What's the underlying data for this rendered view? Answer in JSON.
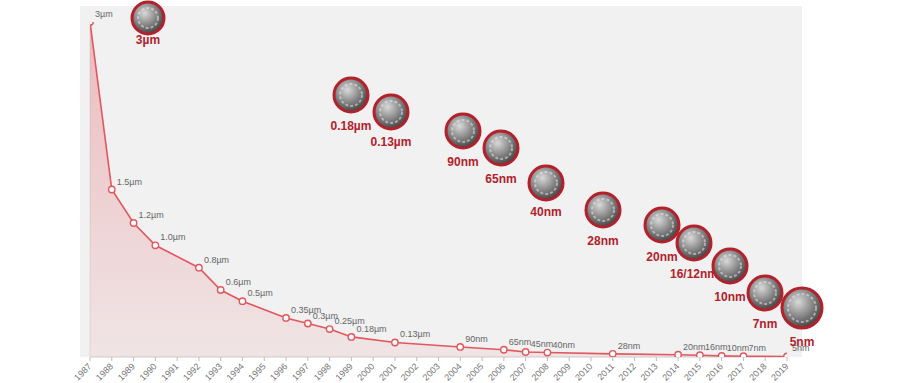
{
  "chart_data": {
    "type": "area",
    "x": [
      1987,
      1988,
      1989,
      1990,
      1992,
      1993,
      1994,
      1996,
      1997,
      1998,
      1999,
      2001,
      2004,
      2006,
      2007,
      2008,
      2011,
      2014,
      2015,
      2016,
      2017,
      2019
    ],
    "values": [
      3000,
      1500,
      1200,
      1000,
      800,
      600,
      500,
      350,
      300,
      250,
      180,
      130,
      90,
      65,
      45,
      40,
      28,
      20,
      16,
      10,
      7,
      5
    ],
    "value_labels": [
      "3µm",
      "1.5µm",
      "1.2µm",
      "1.0µm",
      "0.8µm",
      "0.6µm",
      "0.5µm",
      "0.35µm",
      "0.3µm",
      "0.25µm",
      "0.18µm",
      "0.13µm",
      "90nm",
      "65nm",
      "45nm",
      "40nm",
      "28nm",
      "20nm",
      "16nm",
      "10nm",
      "7nm",
      "5nm"
    ],
    "color": "#e2575e",
    "marker": "circle",
    "data_labels": true,
    "tick_labels": "x",
    "xlim": [
      1987,
      2019
    ],
    "xticks": [
      1987,
      1988,
      1989,
      1990,
      1991,
      1992,
      1993,
      1994,
      1995,
      1996,
      1997,
      1998,
      1999,
      2000,
      2001,
      2002,
      2003,
      2004,
      2005,
      2006,
      2007,
      2008,
      2009,
      2010,
      2011,
      2012,
      2013,
      2014,
      2015,
      2016,
      2017,
      2018,
      2019
    ],
    "ylim": [
      0,
      3000
    ],
    "annotations": [
      "3µm",
      "0.18µm",
      "0.13µm",
      "90nm",
      "65nm",
      "40nm",
      "28nm",
      "20nm",
      "16/12nm",
      "10nm",
      "7nm",
      "5nm"
    ]
  }
}
